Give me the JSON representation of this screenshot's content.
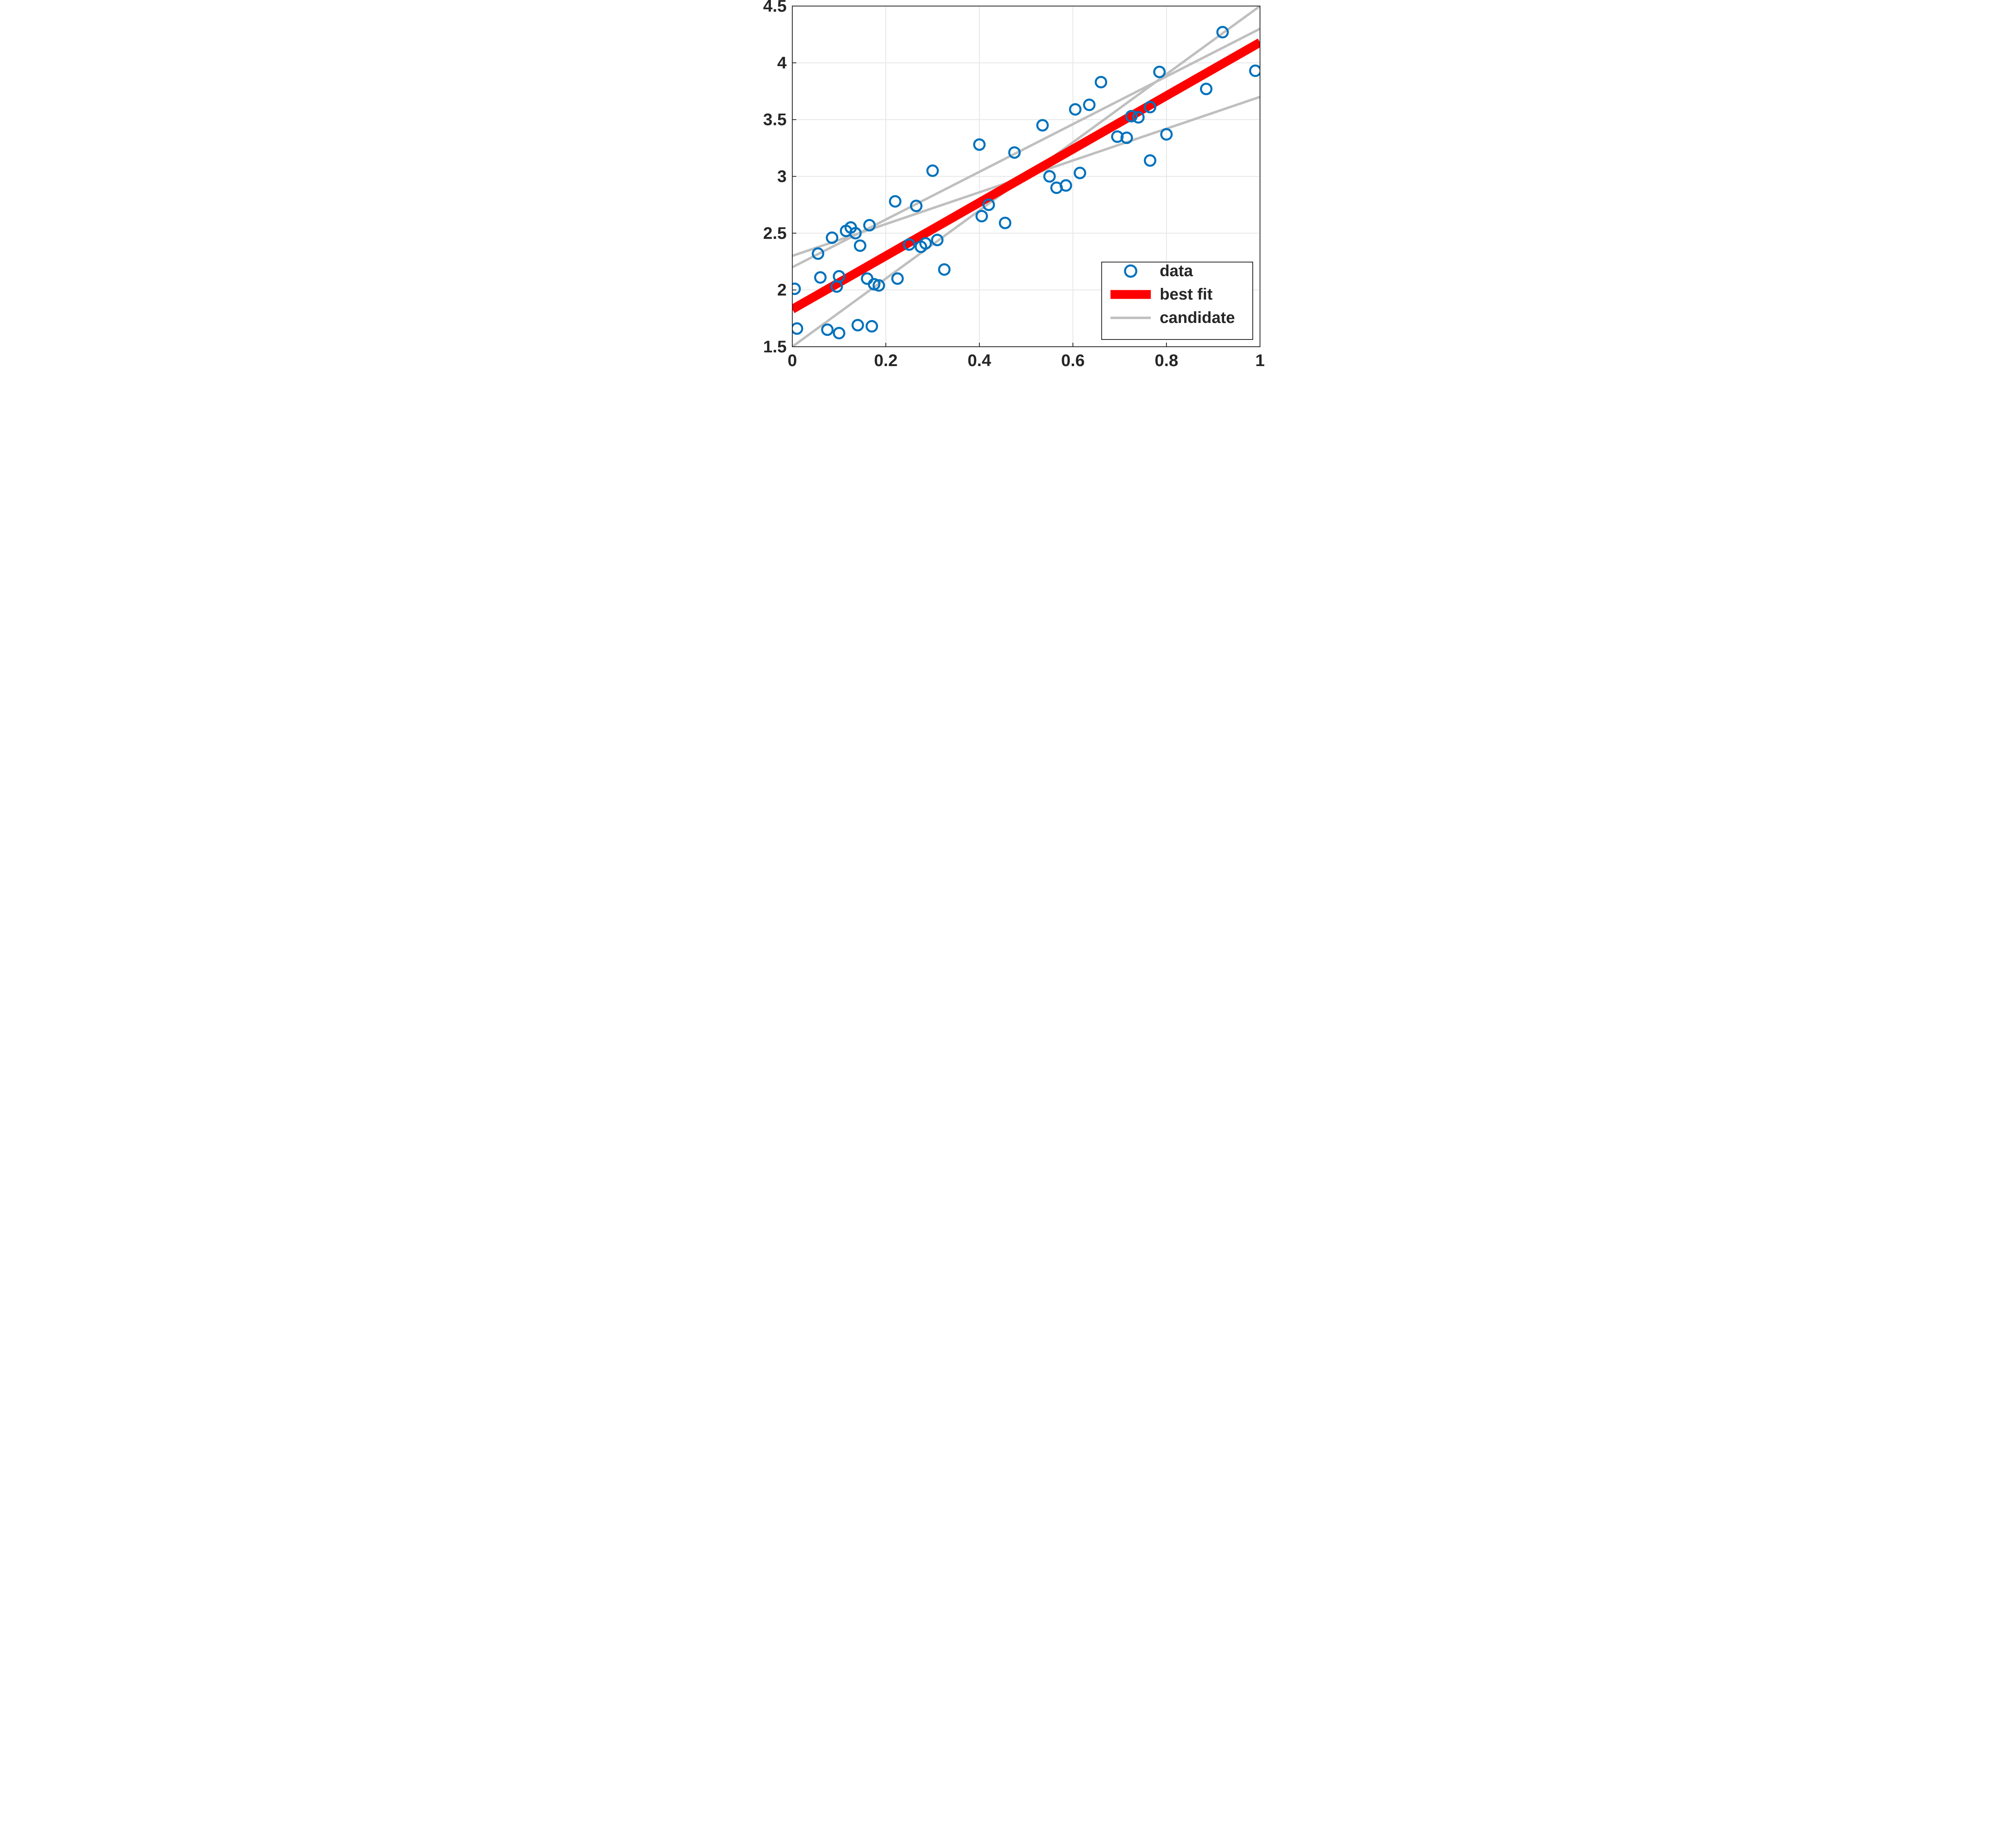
{
  "chart": {
    "type": "scatter+line",
    "x_axis": {
      "lim": [
        0,
        1
      ],
      "ticks": [
        0,
        0.2,
        0.4,
        0.6,
        0.8,
        1
      ],
      "tick_labels": [
        "0",
        "0.2",
        "0.4",
        "0.6",
        "0.8",
        "1"
      ],
      "fontsize": 42,
      "font_weight": "bold",
      "font_family": "Arial, Helvetica, sans-serif",
      "color": "#262626"
    },
    "y_axis": {
      "lim": [
        1.5,
        4.5
      ],
      "ticks": [
        1.5,
        2,
        2.5,
        3,
        3.5,
        4,
        4.5
      ],
      "tick_labels": [
        "1.5",
        "2",
        "2.5",
        "3",
        "3.5",
        "4",
        "4.5"
      ],
      "fontsize": 42,
      "font_weight": "bold",
      "font_family": "Arial, Helvetica, sans-serif",
      "color": "#262626"
    },
    "background_color": "#ffffff",
    "plot_border_color": "#262626",
    "plot_border_width": 2,
    "grid": {
      "show": true,
      "color": "#e6e6e6",
      "width": 2
    },
    "series": {
      "scatter": {
        "label": "data",
        "marker": "open-circle",
        "marker_radius": 13,
        "marker_stroke_width": 5,
        "marker_stroke_color": "#0072bd",
        "marker_fill_color": "none",
        "points": [
          [
            0.005,
            2.01
          ],
          [
            0.01,
            1.66
          ],
          [
            0.055,
            2.32
          ],
          [
            0.06,
            2.11
          ],
          [
            0.075,
            1.65
          ],
          [
            0.085,
            2.46
          ],
          [
            0.095,
            2.03
          ],
          [
            0.1,
            1.62
          ],
          [
            0.1,
            2.12
          ],
          [
            0.115,
            2.52
          ],
          [
            0.125,
            2.55
          ],
          [
            0.135,
            2.5
          ],
          [
            0.14,
            1.69
          ],
          [
            0.145,
            2.39
          ],
          [
            0.16,
            2.1
          ],
          [
            0.165,
            2.57
          ],
          [
            0.17,
            1.68
          ],
          [
            0.175,
            2.05
          ],
          [
            0.185,
            2.04
          ],
          [
            0.22,
            2.78
          ],
          [
            0.225,
            2.1
          ],
          [
            0.25,
            2.4
          ],
          [
            0.265,
            2.74
          ],
          [
            0.275,
            2.38
          ],
          [
            0.285,
            2.41
          ],
          [
            0.3,
            3.05
          ],
          [
            0.31,
            2.44
          ],
          [
            0.325,
            2.18
          ],
          [
            0.4,
            3.28
          ],
          [
            0.405,
            2.65
          ],
          [
            0.42,
            2.75
          ],
          [
            0.455,
            2.59
          ],
          [
            0.475,
            3.21
          ],
          [
            0.535,
            3.45
          ],
          [
            0.55,
            3.0
          ],
          [
            0.565,
            2.9
          ],
          [
            0.585,
            2.92
          ],
          [
            0.605,
            3.59
          ],
          [
            0.615,
            3.03
          ],
          [
            0.635,
            3.63
          ],
          [
            0.66,
            3.83
          ],
          [
            0.695,
            3.35
          ],
          [
            0.715,
            3.34
          ],
          [
            0.725,
            3.53
          ],
          [
            0.74,
            3.52
          ],
          [
            0.765,
            3.61
          ],
          [
            0.765,
            3.14
          ],
          [
            0.785,
            3.92
          ],
          [
            0.8,
            3.37
          ],
          [
            0.885,
            3.77
          ],
          [
            0.92,
            4.27
          ],
          [
            0.99,
            3.93
          ]
        ]
      },
      "best_fit": {
        "label": "best fit",
        "x": [
          0,
          1
        ],
        "y": [
          1.83,
          4.18
        ],
        "color": "#ff0000",
        "width": 22
      },
      "candidates": {
        "label": "candidate",
        "color": "#bfbfbf",
        "width": 6,
        "lines": [
          {
            "x": [
              0,
              1
            ],
            "y": [
              1.5,
              4.5
            ]
          },
          {
            "x": [
              0,
              1
            ],
            "y": [
              2.2,
              4.3
            ]
          },
          {
            "x": [
              0,
              1
            ],
            "y": [
              2.3,
              3.7
            ]
          }
        ]
      }
    },
    "legend": {
      "position": "lower-right",
      "box_stroke_color": "#262626",
      "box_stroke_width": 2,
      "box_fill_color": "#ffffff",
      "fontsize": 40,
      "font_weight": "bold",
      "text_color": "#262626",
      "items": [
        {
          "type": "marker",
          "label": "data"
        },
        {
          "type": "line-fit",
          "label": "best fit"
        },
        {
          "type": "line-cand",
          "label": "candidate"
        }
      ]
    }
  }
}
